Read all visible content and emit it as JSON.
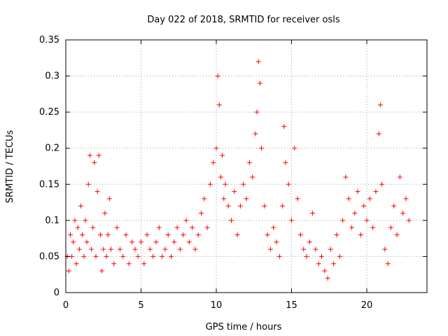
{
  "chart_data": {
    "type": "scatter",
    "title": "Day 022 of 2018, SRMTID for receiver osls",
    "xlabel": "GPS time / hours",
    "ylabel": "SRMTID / TECUs",
    "xlim": [
      0,
      24
    ],
    "ylim": [
      0,
      0.35
    ],
    "x_ticks": [
      0,
      5,
      10,
      15,
      20
    ],
    "x_tick_labels": [
      "0",
      "5",
      "10",
      "15",
      "20"
    ],
    "y_ticks": [
      0,
      0.05,
      0.1,
      0.15,
      0.2,
      0.25,
      0.3,
      0.35
    ],
    "y_tick_labels": [
      "0",
      "0.05",
      "0.1",
      "0.15",
      "0.2",
      "0.25",
      "0.3",
      "0.35"
    ],
    "grid": true,
    "marker": "+",
    "color": "#ff0000",
    "series": [
      {
        "name": "SRMTID",
        "points": [
          [
            0.1,
            0.05
          ],
          [
            0.2,
            0.03
          ],
          [
            0.3,
            0.08
          ],
          [
            0.4,
            0.05
          ],
          [
            0.5,
            0.07
          ],
          [
            0.6,
            0.1
          ],
          [
            0.7,
            0.04
          ],
          [
            0.8,
            0.09
          ],
          [
            0.9,
            0.06
          ],
          [
            1.0,
            0.12
          ],
          [
            1.1,
            0.08
          ],
          [
            1.2,
            0.05
          ],
          [
            1.3,
            0.1
          ],
          [
            1.4,
            0.07
          ],
          [
            1.5,
            0.15
          ],
          [
            1.6,
            0.19
          ],
          [
            1.7,
            0.06
          ],
          [
            1.8,
            0.09
          ],
          [
            1.9,
            0.18
          ],
          [
            2.0,
            0.05
          ],
          [
            2.1,
            0.14
          ],
          [
            2.2,
            0.19
          ],
          [
            2.3,
            0.08
          ],
          [
            2.4,
            0.03
          ],
          [
            2.5,
            0.06
          ],
          [
            2.6,
            0.11
          ],
          [
            2.7,
            0.05
          ],
          [
            2.8,
            0.08
          ],
          [
            2.9,
            0.13
          ],
          [
            3.0,
            0.06
          ],
          [
            3.2,
            0.04
          ],
          [
            3.4,
            0.09
          ],
          [
            3.6,
            0.06
          ],
          [
            3.8,
            0.05
          ],
          [
            4.0,
            0.08
          ],
          [
            4.2,
            0.04
          ],
          [
            4.4,
            0.07
          ],
          [
            4.6,
            0.06
          ],
          [
            4.8,
            0.05
          ],
          [
            5.0,
            0.07
          ],
          [
            5.2,
            0.04
          ],
          [
            5.4,
            0.08
          ],
          [
            5.6,
            0.06
          ],
          [
            5.8,
            0.05
          ],
          [
            6.0,
            0.07
          ],
          [
            6.2,
            0.09
          ],
          [
            6.4,
            0.05
          ],
          [
            6.6,
            0.06
          ],
          [
            6.8,
            0.08
          ],
          [
            7.0,
            0.05
          ],
          [
            7.2,
            0.07
          ],
          [
            7.4,
            0.09
          ],
          [
            7.6,
            0.06
          ],
          [
            7.8,
            0.08
          ],
          [
            8.0,
            0.1
          ],
          [
            8.2,
            0.07
          ],
          [
            8.4,
            0.09
          ],
          [
            8.6,
            0.06
          ],
          [
            8.8,
            0.08
          ],
          [
            9.0,
            0.11
          ],
          [
            9.2,
            0.13
          ],
          [
            9.4,
            0.09
          ],
          [
            9.6,
            0.15
          ],
          [
            9.8,
            0.18
          ],
          [
            10.0,
            0.2
          ],
          [
            10.1,
            0.3
          ],
          [
            10.2,
            0.26
          ],
          [
            10.3,
            0.16
          ],
          [
            10.4,
            0.19
          ],
          [
            10.5,
            0.13
          ],
          [
            10.6,
            0.15
          ],
          [
            10.8,
            0.12
          ],
          [
            11.0,
            0.1
          ],
          [
            11.2,
            0.14
          ],
          [
            11.4,
            0.08
          ],
          [
            11.6,
            0.12
          ],
          [
            11.8,
            0.15
          ],
          [
            12.0,
            0.13
          ],
          [
            12.2,
            0.18
          ],
          [
            12.4,
            0.16
          ],
          [
            12.6,
            0.22
          ],
          [
            12.7,
            0.25
          ],
          [
            12.8,
            0.32
          ],
          [
            12.9,
            0.29
          ],
          [
            13.0,
            0.2
          ],
          [
            13.2,
            0.12
          ],
          [
            13.4,
            0.08
          ],
          [
            13.6,
            0.06
          ],
          [
            13.8,
            0.09
          ],
          [
            14.0,
            0.07
          ],
          [
            14.2,
            0.05
          ],
          [
            14.4,
            0.12
          ],
          [
            14.5,
            0.23
          ],
          [
            14.6,
            0.18
          ],
          [
            14.8,
            0.15
          ],
          [
            15.0,
            0.1
          ],
          [
            15.2,
            0.2
          ],
          [
            15.4,
            0.13
          ],
          [
            15.6,
            0.08
          ],
          [
            15.8,
            0.06
          ],
          [
            16.0,
            0.05
          ],
          [
            16.2,
            0.07
          ],
          [
            16.4,
            0.11
          ],
          [
            16.6,
            0.06
          ],
          [
            16.8,
            0.04
          ],
          [
            17.0,
            0.05
          ],
          [
            17.2,
            0.03
          ],
          [
            17.4,
            0.02
          ],
          [
            17.6,
            0.06
          ],
          [
            17.8,
            0.04
          ],
          [
            18.0,
            0.08
          ],
          [
            18.2,
            0.05
          ],
          [
            18.4,
            0.1
          ],
          [
            18.6,
            0.16
          ],
          [
            18.8,
            0.13
          ],
          [
            19.0,
            0.09
          ],
          [
            19.2,
            0.11
          ],
          [
            19.4,
            0.14
          ],
          [
            19.6,
            0.08
          ],
          [
            19.8,
            0.12
          ],
          [
            20.0,
            0.1
          ],
          [
            20.2,
            0.13
          ],
          [
            20.4,
            0.09
          ],
          [
            20.6,
            0.14
          ],
          [
            20.8,
            0.22
          ],
          [
            20.9,
            0.26
          ],
          [
            21.0,
            0.15
          ],
          [
            21.2,
            0.06
          ],
          [
            21.4,
            0.04
          ],
          [
            21.6,
            0.09
          ],
          [
            21.8,
            0.12
          ],
          [
            22.0,
            0.08
          ],
          [
            22.2,
            0.16
          ],
          [
            22.4,
            0.11
          ],
          [
            22.6,
            0.13
          ],
          [
            22.8,
            0.1
          ]
        ]
      }
    ]
  }
}
